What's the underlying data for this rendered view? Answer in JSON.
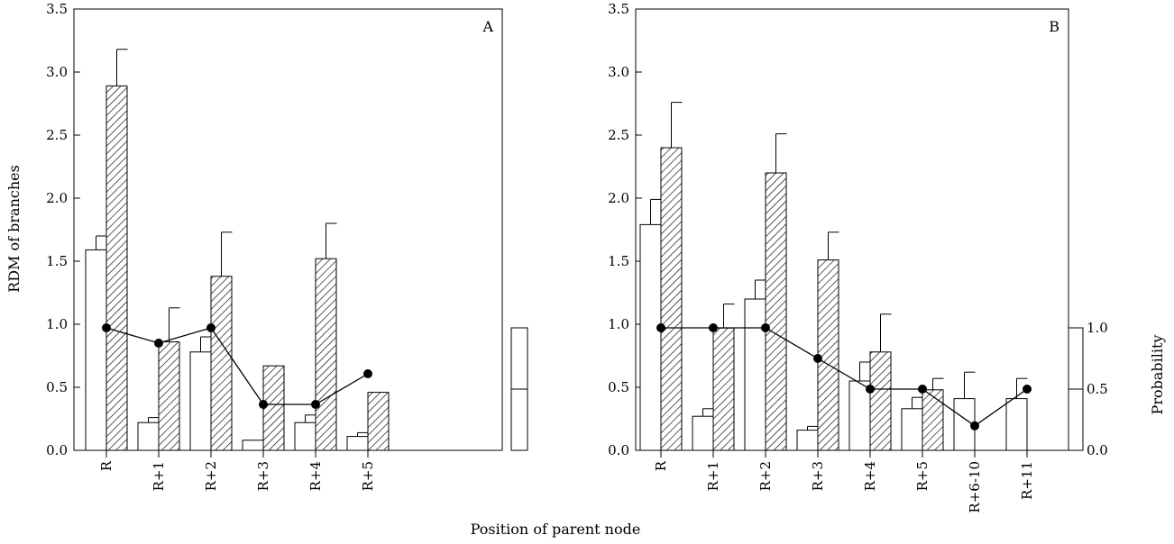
{
  "figure": {
    "xlabel": "Position of parent node",
    "ylabel_left": "RDM of branches",
    "ylabel_right": "Probability"
  },
  "chart_data": [
    {
      "type": "bar",
      "panel": "A",
      "categories": [
        "R",
        "R+1",
        "R+2",
        "R+3",
        "R+4",
        "R+5"
      ],
      "series": [
        {
          "style": "open",
          "values": [
            1.59,
            0.22,
            0.78,
            0.08,
            0.22,
            0.11
          ],
          "errors": [
            0.11,
            0.04,
            0.12,
            0,
            0.06,
            0.03
          ]
        },
        {
          "style": "hatched",
          "values": [
            2.89,
            0.86,
            1.38,
            0.67,
            1.52,
            0.46
          ],
          "errors": [
            0.29,
            0.27,
            0.35,
            0,
            0.28,
            0
          ]
        }
      ],
      "probability": [
        1.0,
        0.875,
        1.0,
        0.375,
        0.375,
        0.625
      ],
      "ylim": [
        0,
        3.5
      ],
      "yticks": [
        "0.0",
        "0.5",
        "1.0",
        "1.5",
        "2.0",
        "2.5",
        "3.0",
        "3.5"
      ],
      "prob_ticks": []
    },
    {
      "type": "bar",
      "panel": "B",
      "categories": [
        "R",
        "R+1",
        "R+2",
        "R+3",
        "R+4",
        "R+5",
        "R+6-10",
        "R+11"
      ],
      "series": [
        {
          "style": "open",
          "values": [
            1.79,
            0.27,
            1.2,
            0.16,
            0.55,
            0.33,
            0.41,
            0.41
          ],
          "errors": [
            0.2,
            0.06,
            0.15,
            0.03,
            0.15,
            0.09,
            0.21,
            0.16
          ]
        },
        {
          "style": "hatched",
          "values": [
            2.4,
            0.97,
            2.2,
            1.51,
            0.78,
            0.48,
            null,
            null
          ],
          "errors": [
            0.36,
            0.19,
            0.31,
            0.22,
            0.3,
            0.09,
            null,
            null
          ]
        }
      ],
      "probability": [
        1.0,
        1.0,
        1.0,
        0.75,
        0.5,
        0.5,
        0.2,
        0.5
      ],
      "ylim": [
        0,
        3.5
      ],
      "yticks": [
        "0.0",
        "0.5",
        "1.0",
        "1.5",
        "2.0",
        "2.5",
        "3.0",
        "3.5"
      ],
      "prob_ticks": [
        "0.0",
        "0.5",
        "1.0"
      ]
    }
  ]
}
